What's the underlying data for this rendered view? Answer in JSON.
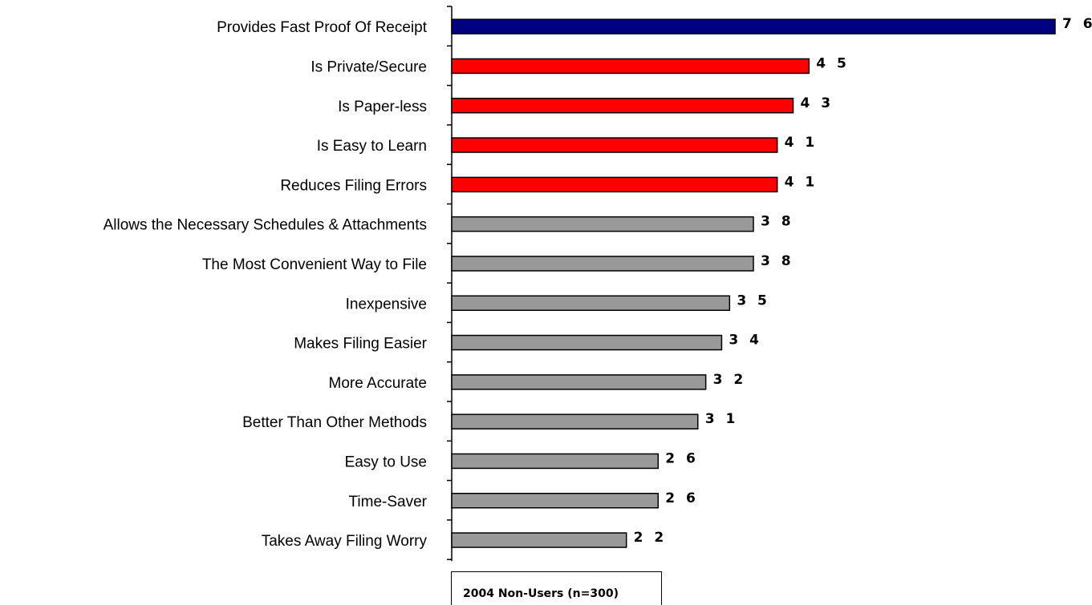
{
  "chart_data": {
    "type": "bar",
    "orientation": "horizontal",
    "categories": [
      "Provides Fast Proof Of Receipt",
      "Is Private/Secure",
      "Is Paper-less",
      "Is Easy to Learn",
      "Reduces Filing Errors",
      "Allows the Necessary Schedules & Attachments",
      "The Most Convenient Way to File",
      "Inexpensive",
      "Makes Filing Easier",
      "More Accurate",
      "Better Than Other Methods",
      "Easy to Use",
      "Time-Saver",
      "Takes Away Filing Worry"
    ],
    "values": [
      76,
      45,
      43,
      41,
      41,
      38,
      38,
      35,
      34,
      32,
      31,
      26,
      26,
      22
    ],
    "value_labels": [
      "7 6",
      "4 5",
      "4 3",
      "4 1",
      "4 1",
      "3 8",
      "3 8",
      "3 5",
      "3 4",
      "3 2",
      "3 1",
      "2 6",
      "2 6",
      "2 2"
    ],
    "bar_colors": [
      "#000080",
      "#ff0000",
      "#ff0000",
      "#ff0000",
      "#ff0000",
      "#999999",
      "#999999",
      "#999999",
      "#999999",
      "#999999",
      "#999999",
      "#999999",
      "#999999",
      "#999999"
    ],
    "xlim": [
      0,
      76
    ],
    "grid": false,
    "legend": {
      "text": "2004 Non-Users (n=300)",
      "placement": "bottom"
    }
  }
}
